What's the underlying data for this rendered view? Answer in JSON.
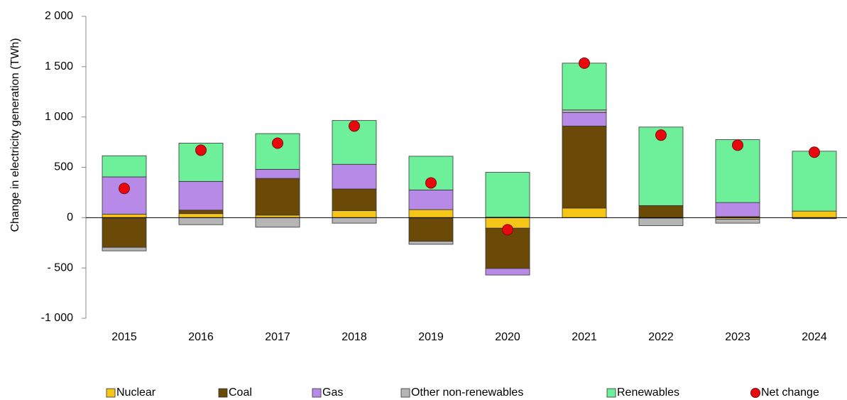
{
  "chart_data": {
    "type": "stacked_bar",
    "y_label": "Change in electricity generation (TWh)",
    "categories": [
      "2015",
      "2016",
      "2017",
      "2018",
      "2019",
      "2020",
      "2021",
      "2022",
      "2023",
      "2024"
    ],
    "series": [
      {
        "name": "Nuclear",
        "color": "#f5c518",
        "values": [
          35,
          40,
          25,
          70,
          80,
          -105,
          95,
          -5,
          -15,
          65
        ]
      },
      {
        "name": "Coal",
        "color": "#6b4a07",
        "values": [
          -295,
          35,
          365,
          215,
          -235,
          -400,
          815,
          120,
          10,
          -10
        ]
      },
      {
        "name": "Gas",
        "color": "#b88ae8",
        "values": [
          370,
          285,
          90,
          245,
          195,
          -65,
          135,
          0,
          140,
          0
        ]
      },
      {
        "name": "Other non-renewables",
        "color": "#b5b5b5",
        "values": [
          -35,
          -70,
          -95,
          -55,
          -30,
          5,
          25,
          -75,
          -40,
          0
        ]
      },
      {
        "name": "Renewables",
        "color": "#6ef09a",
        "values": [
          210,
          380,
          355,
          435,
          335,
          445,
          465,
          780,
          625,
          595
        ]
      }
    ],
    "net": {
      "name": "Net change",
      "color": "#e8080e",
      "values": [
        290,
        670,
        740,
        910,
        345,
        -120,
        1535,
        820,
        720,
        650
      ]
    },
    "ylim": [
      -1000,
      2000
    ],
    "yticks": [
      {
        "value": -1000,
        "label": "-1 000"
      },
      {
        "value": -500,
        "label": "- 500"
      },
      0,
      500,
      {
        "value": 1000,
        "label": "1 000"
      },
      {
        "value": 1500,
        "label": "1 500"
      },
      {
        "value": 2000,
        "label": "2 000"
      }
    ]
  }
}
